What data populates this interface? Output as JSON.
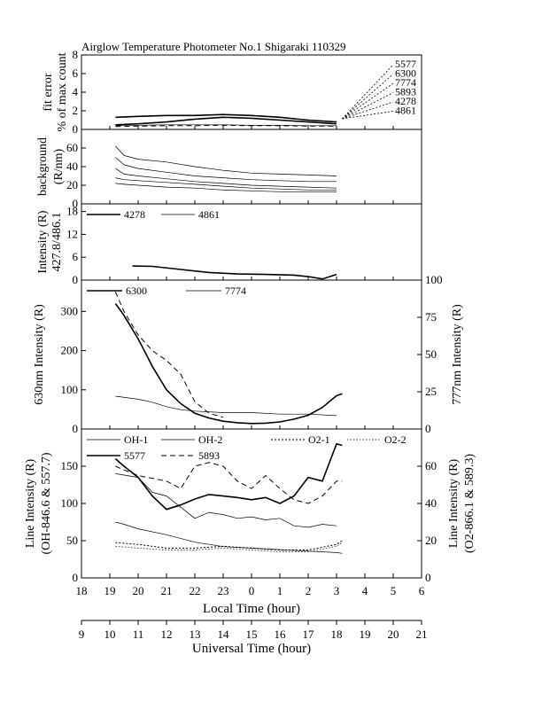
{
  "chart_data": {
    "title": "Airglow Temperature Photometer No.1   Shigaraki   110329",
    "type": "line",
    "x_axes": {
      "local": {
        "label": "Local Time (hour)",
        "ticks": [
          "18",
          "19",
          "20",
          "21",
          "22",
          "23",
          "0",
          "1",
          "2",
          "3",
          "4",
          "5",
          "6"
        ],
        "range": [
          18,
          30
        ]
      },
      "universal": {
        "label": "Universal Time (hour)",
        "ticks": [
          "9",
          "10",
          "11",
          "12",
          "13",
          "14",
          "15",
          "16",
          "17",
          "18",
          "19",
          "20",
          "21"
        ],
        "range": [
          9,
          21
        ]
      }
    },
    "panels": [
      {
        "id": "fit-error",
        "ylabel": [
          "fit error",
          "% of max count"
        ],
        "ylim": [
          0,
          8
        ],
        "yticks": [
          "0",
          "2",
          "4",
          "6",
          "8"
        ],
        "legend_labels": [
          "5577",
          "6300",
          "7774",
          "5893",
          "4278",
          "4861"
        ],
        "series": [
          {
            "label": "5577",
            "x": [
              19.2,
              20,
              21,
              22,
              23,
              24,
              25,
              26,
              27
            ],
            "y": [
              0.5,
              0.6,
              0.8,
              1.1,
              1.3,
              1.2,
              1.0,
              0.8,
              0.6
            ]
          },
          {
            "label": "6300",
            "x": [
              19.2,
              20,
              21,
              22,
              23,
              24,
              25,
              26,
              27
            ],
            "y": [
              1.3,
              1.4,
              1.5,
              1.5,
              1.6,
              1.5,
              1.3,
              1.0,
              0.8
            ]
          },
          {
            "label": "7774",
            "x": [
              19.2,
              20,
              21,
              22,
              23,
              24,
              25,
              26,
              27
            ],
            "y": [
              0.4,
              0.45,
              0.5,
              0.5,
              0.5,
              0.45,
              0.45,
              0.4,
              0.4
            ]
          },
          {
            "label": "5893",
            "x": [
              19.2,
              20,
              21,
              22,
              23,
              24,
              25,
              26,
              27
            ],
            "y": [
              0.3,
              0.35,
              0.4,
              0.4,
              0.45,
              0.4,
              0.4,
              0.35,
              0.35
            ]
          }
        ]
      },
      {
        "id": "background",
        "ylabel": [
          "background",
          "(R/nm)"
        ],
        "ylim": [
          0,
          80
        ],
        "yticks": [
          "0",
          "20",
          "40",
          "60"
        ],
        "series": [
          {
            "label": "top",
            "x": [
              19.2,
              19.5,
              20,
              21,
              22,
              23,
              24,
              25,
              26,
              27
            ],
            "y": [
              62,
              52,
              48,
              45,
              40,
              36,
              33,
              32,
              31,
              30
            ]
          },
          {
            "label": "second",
            "x": [
              19.2,
              19.5,
              20,
              21,
              22,
              23,
              24,
              25,
              26,
              27
            ],
            "y": [
              50,
              42,
              38,
              34,
              30,
              28,
              26,
              25,
              24,
              24
            ]
          },
          {
            "label": "third",
            "x": [
              19.2,
              19.5,
              20,
              21,
              22,
              23,
              24,
              25,
              26,
              27
            ],
            "y": [
              38,
              32,
              30,
              27,
              24,
              22,
              20,
              19,
              18,
              17
            ]
          },
          {
            "label": "fourth",
            "x": [
              19.2,
              19.5,
              20,
              21,
              22,
              23,
              24,
              25,
              26,
              27
            ],
            "y": [
              28,
              26,
              25,
              23,
              21,
              19,
              17,
              16,
              15,
              15
            ]
          },
          {
            "label": "fifth",
            "x": [
              19.2,
              19.5,
              20,
              21,
              22,
              23,
              24,
              25,
              26,
              27
            ],
            "y": [
              22,
              21,
              20,
              18,
              17,
              15,
              14,
              13,
              13,
              13
            ]
          }
        ]
      },
      {
        "id": "blue-intensity",
        "ylabel": [
          "Intensity (R)",
          "427.8/486.1"
        ],
        "ylim": [
          0,
          20
        ],
        "yticks": [
          "0",
          "6",
          "12",
          "18"
        ],
        "legend": [
          {
            "label": "4278",
            "style": "thick"
          },
          {
            "label": "4861",
            "style": "thin"
          }
        ],
        "series": [
          {
            "label": "4278",
            "x": [
              19.8,
              20.5,
              21.5,
              22.5,
              23.5,
              24.5,
              25.5,
              26,
              26.5,
              27
            ],
            "y": [
              3.7,
              3.6,
              2.8,
              2.0,
              1.6,
              1.5,
              1.3,
              0.9,
              0.3,
              1.5
            ]
          }
        ]
      },
      {
        "id": "red-intensity",
        "ylabel": "630nm Intensity (R)",
        "ylabel_right": "777nm Intensity (R)",
        "ylim": [
          0,
          380
        ],
        "yticks": [
          "0",
          "100",
          "200",
          "300"
        ],
        "ylim_right": [
          0,
          100
        ],
        "yticks_right": [
          "0",
          "25",
          "50",
          "75",
          "100"
        ],
        "legend": [
          {
            "label": "6300",
            "style": "thick"
          },
          {
            "label": "7774",
            "style": "thin"
          }
        ],
        "series": [
          {
            "label": "6300",
            "x": [
              19.2,
              19.5,
              20,
              20.5,
              21,
              21.5,
              22,
              22.5,
              23,
              23.5,
              24,
              24.5,
              25,
              25.5,
              26,
              26.5,
              27,
              27.2
            ],
            "y": [
              320,
              290,
              230,
              160,
              100,
              65,
              40,
              28,
              20,
              16,
              14,
              15,
              18,
              25,
              35,
              55,
              85,
              90
            ]
          },
          {
            "label": "7774",
            "axis": "right",
            "x": [
              19.2,
              20,
              20.5,
              21,
              21.5,
              22,
              23,
              24,
              25,
              26,
              27
            ],
            "y": [
              22,
              20,
              18,
              15,
              13,
              12,
              11,
              11,
              10,
              10,
              9
            ]
          },
          {
            "label": "dashed",
            "x": [
              19.2,
              19.5,
              20,
              20.5,
              21,
              21.5,
              22,
              22.5,
              23
            ],
            "y": [
              350,
              300,
              240,
              200,
              175,
              140,
              70,
              40,
              30
            ]
          }
        ]
      },
      {
        "id": "line-intensity",
        "ylabel": [
          "Line Intensity (R)",
          "(OH-846.6 & 557.7)"
        ],
        "ylabel_right": [
          "Line Intensity (R)",
          "(O2-866.1 & 589.3)"
        ],
        "ylim": [
          0,
          200
        ],
        "yticks": [
          "0",
          "50",
          "100",
          "150"
        ],
        "ylim_right": [
          0,
          80
        ],
        "yticks_right": [
          "0",
          "20",
          "40",
          "60"
        ],
        "legend": [
          {
            "label": "OH-1",
            "style": "thin"
          },
          {
            "label": "OH-2",
            "style": "thin"
          },
          {
            "label": "O2-1",
            "style": "dotted"
          },
          {
            "label": "O2-2",
            "style": "dotted-thin"
          },
          {
            "label": "5577",
            "style": "thick"
          },
          {
            "label": "5893",
            "style": "dashed"
          }
        ],
        "series": [
          {
            "label": "5577",
            "x": [
              19.2,
              19.5,
              20,
              20.5,
              21,
              21.5,
              22,
              22.5,
              23,
              23.5,
              24,
              24.5,
              25,
              25.5,
              26,
              26.5,
              27,
              27.2
            ],
            "y": [
              160,
              150,
              135,
              110,
              92,
              98,
              106,
              112,
              110,
              108,
              105,
              108,
              100,
              110,
              135,
              130,
              180,
              178
            ]
          },
          {
            "label": "OH-1",
            "x": [
              19.2,
              19.5,
              20,
              21,
              22,
              23,
              24,
              25,
              26,
              27,
              27.2
            ],
            "y": [
              75,
              72,
              66,
              58,
              48,
              42,
              40,
              38,
              36,
              34,
              33
            ]
          },
          {
            "label": "OH-2",
            "x": [
              19.2,
              20,
              20.5,
              21,
              21.5,
              22,
              22.5,
              23,
              23.5,
              24,
              24.5,
              25,
              25.5,
              26,
              26.5,
              27
            ],
            "y": [
              140,
              135,
              115,
              110,
              95,
              80,
              88,
              85,
              80,
              82,
              78,
              80,
              70,
              68,
              72,
              70
            ]
          },
          {
            "label": "5893",
            "axis": "right",
            "x": [
              19.2,
              19.5,
              20,
              21,
              21.5,
              22,
              22.5,
              23,
              23.5,
              24,
              24.5,
              25,
              25.5,
              26,
              26.5,
              27,
              27.2
            ],
            "y": [
              60,
              58,
              55,
              52,
              48,
              60,
              62,
              60,
              52,
              48,
              55,
              48,
              42,
              40,
              44,
              52,
              52
            ]
          },
          {
            "label": "O2-1",
            "axis": "right",
            "x": [
              19.2,
              20,
              21,
              22,
              23,
              24,
              25,
              26,
              27,
              27.2
            ],
            "y": [
              19,
              18,
              16,
              16,
              17,
              16,
              15,
              15,
              18,
              20
            ]
          },
          {
            "label": "O2-2",
            "axis": "right",
            "x": [
              19.2,
              20,
              21,
              22,
              23,
              24,
              25,
              26,
              27,
              27.2
            ],
            "y": [
              17,
              16,
              15,
              15,
              16,
              15,
              14,
              14,
              17,
              19
            ]
          }
        ]
      }
    ]
  }
}
